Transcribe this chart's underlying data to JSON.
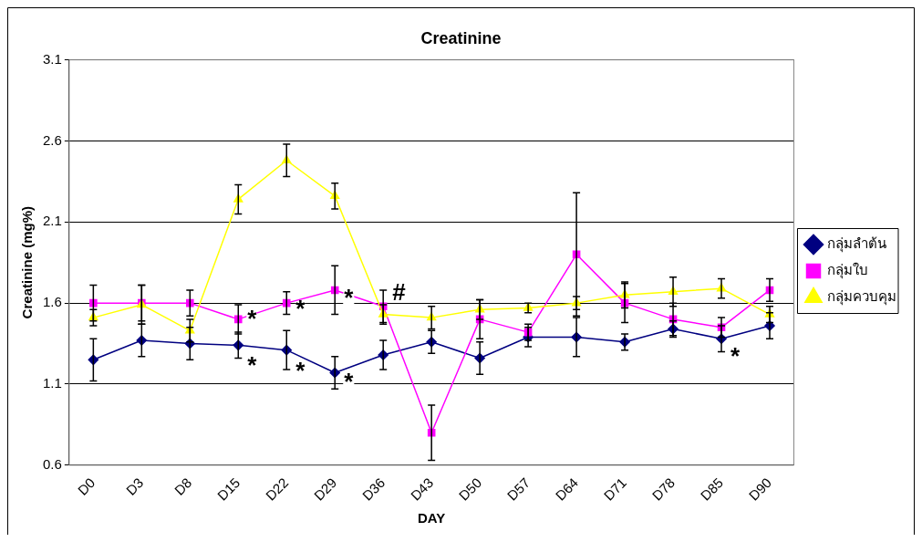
{
  "chart_data": {
    "type": "line",
    "title": "Creatinine",
    "xlabel": "DAY",
    "ylabel": "Creatinine (mg%)",
    "categories": [
      "D0",
      "D3",
      "D8",
      "D15",
      "D22",
      "D29",
      "D36",
      "D43",
      "D50",
      "D57",
      "D64",
      "D71",
      "D78",
      "D85",
      "D90"
    ],
    "series": [
      {
        "name": "กลุ่มลำต้น",
        "color": "#000080",
        "marker": "diamond",
        "values": [
          1.25,
          1.37,
          1.35,
          1.34,
          1.31,
          1.17,
          1.28,
          1.36,
          1.26,
          1.39,
          1.39,
          1.36,
          1.44,
          1.38,
          1.46
        ],
        "errors": [
          0.13,
          0.1,
          0.1,
          0.08,
          0.12,
          0.1,
          0.09,
          0.07,
          0.1,
          0.06,
          0.12,
          0.05,
          0.05,
          0.08,
          0.08
        ]
      },
      {
        "name": "กลุ่มใบ",
        "color": "#ff00ff",
        "marker": "square",
        "values": [
          1.6,
          1.6,
          1.6,
          1.5,
          1.6,
          1.68,
          1.58,
          0.8,
          1.5,
          1.42,
          1.9,
          1.6,
          1.5,
          1.45,
          1.68
        ],
        "errors": [
          0.11,
          0.11,
          0.08,
          0.09,
          0.07,
          0.15,
          0.1,
          0.17,
          0.12,
          0.05,
          0.38,
          0.12,
          0.1,
          0.06,
          0.07
        ]
      },
      {
        "name": "กลุ่มควบคุม",
        "color": "#ffff00",
        "marker": "triangle",
        "values": [
          1.51,
          1.59,
          1.43,
          2.24,
          2.48,
          2.26,
          1.53,
          1.51,
          1.56,
          1.57,
          1.6,
          1.65,
          1.67,
          1.69,
          1.53
        ],
        "errors": [
          0.05,
          0.12,
          0.07,
          0.09,
          0.1,
          0.08,
          0.06,
          0.07,
          0.06,
          0.03,
          0.04,
          0.08,
          0.09,
          0.06,
          0.05
        ]
      }
    ],
    "ylim": [
      0.6,
      3.1
    ],
    "yticks": [
      0.6,
      1.1,
      1.6,
      2.1,
      2.6,
      3.1
    ],
    "grid": "y",
    "legend": "right",
    "annotations": [
      {
        "text": "*",
        "x": "D15",
        "y": 1.53
      },
      {
        "text": "*",
        "x": "D22",
        "y": 1.59
      },
      {
        "text": "*",
        "x": "D29",
        "y": 1.66
      },
      {
        "text": "#",
        "x": "D36",
        "y": 1.69
      },
      {
        "text": "*",
        "x": "D15",
        "y": 1.24
      },
      {
        "text": "*",
        "x": "D22",
        "y": 1.21
      },
      {
        "text": "*",
        "x": "D29",
        "y": 1.14
      },
      {
        "text": "*",
        "x": "D85",
        "y": 1.3
      }
    ]
  }
}
